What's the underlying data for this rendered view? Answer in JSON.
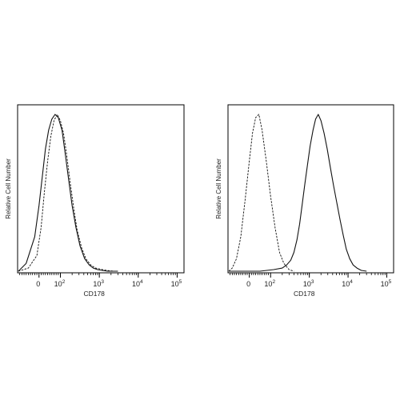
{
  "chart_data": [
    {
      "type": "line",
      "title": "",
      "xlabel": "CD178",
      "ylabel": "Relative Cell Number",
      "x_scale": "biexponential",
      "xlim": [
        -100,
        150000
      ],
      "ylim": [
        0,
        1
      ],
      "grid": false,
      "x_ticks": [
        {
          "base": "0",
          "exp": "",
          "value": 0
        },
        {
          "base": "10",
          "exp": "2",
          "value": 100
        },
        {
          "base": "10",
          "exp": "3",
          "value": 1000
        },
        {
          "base": "10",
          "exp": "4",
          "value": 10000
        },
        {
          "base": "10",
          "exp": "5",
          "value": 100000
        }
      ],
      "series": [
        {
          "style": "solid",
          "x": [
            -100,
            -60,
            -20,
            0,
            15,
            30,
            45,
            60,
            75,
            90,
            110,
            130,
            160,
            200,
            250,
            320,
            420,
            550,
            700,
            900,
            1200,
            1600,
            2200,
            3000
          ],
          "y": [
            0,
            0.05,
            0.22,
            0.42,
            0.6,
            0.78,
            0.9,
            0.97,
            1.0,
            0.98,
            0.9,
            0.77,
            0.6,
            0.42,
            0.28,
            0.16,
            0.08,
            0.04,
            0.02,
            0.01,
            0.005,
            0,
            0,
            0
          ]
        },
        {
          "style": "dashed",
          "x": [
            -100,
            -50,
            -10,
            10,
            25,
            40,
            55,
            70,
            85,
            100,
            120,
            145,
            180,
            220,
            270,
            350,
            450,
            600,
            800,
            1000,
            1300,
            1800,
            2500
          ],
          "y": [
            0,
            0.02,
            0.1,
            0.28,
            0.5,
            0.7,
            0.86,
            0.96,
            1.0,
            0.96,
            0.88,
            0.74,
            0.56,
            0.4,
            0.26,
            0.15,
            0.08,
            0.04,
            0.02,
            0.015,
            0.008,
            0.003,
            0
          ]
        }
      ]
    },
    {
      "type": "line",
      "title": "",
      "xlabel": "CD178",
      "ylabel": "Relative Cell Number",
      "x_scale": "biexponential",
      "xlim": [
        -100,
        150000
      ],
      "ylim": [
        0,
        1
      ],
      "grid": false,
      "x_ticks": [
        {
          "base": "0",
          "exp": "",
          "value": 0
        },
        {
          "base": "10",
          "exp": "2",
          "value": 100
        },
        {
          "base": "10",
          "exp": "3",
          "value": 1000
        },
        {
          "base": "10",
          "exp": "4",
          "value": 10000
        },
        {
          "base": "10",
          "exp": "5",
          "value": 100000
        }
      ],
      "series": [
        {
          "style": "solid",
          "x": [
            -100,
            50,
            120,
            200,
            260,
            330,
            400,
            480,
            560,
            650,
            760,
            900,
            1050,
            1250,
            1450,
            1700,
            2000,
            2400,
            2900,
            3500,
            4200,
            5100,
            6200,
            7500,
            9000,
            11000,
            13500,
            17000,
            22000,
            30000
          ],
          "y": [
            0,
            0,
            0.01,
            0.02,
            0.04,
            0.07,
            0.12,
            0.2,
            0.3,
            0.42,
            0.55,
            0.68,
            0.8,
            0.9,
            0.97,
            1.0,
            0.96,
            0.88,
            0.78,
            0.66,
            0.55,
            0.44,
            0.33,
            0.23,
            0.14,
            0.08,
            0.04,
            0.02,
            0.005,
            0
          ]
        },
        {
          "style": "dashed",
          "x": [
            -100,
            -80,
            -60,
            -40,
            -20,
            0,
            15,
            30,
            45,
            60,
            80,
            100,
            130,
            170,
            220,
            300,
            400
          ],
          "y": [
            0,
            0.02,
            0.08,
            0.22,
            0.45,
            0.7,
            0.88,
            0.98,
            1.0,
            0.9,
            0.7,
            0.48,
            0.28,
            0.12,
            0.05,
            0.01,
            0
          ]
        }
      ]
    }
  ]
}
